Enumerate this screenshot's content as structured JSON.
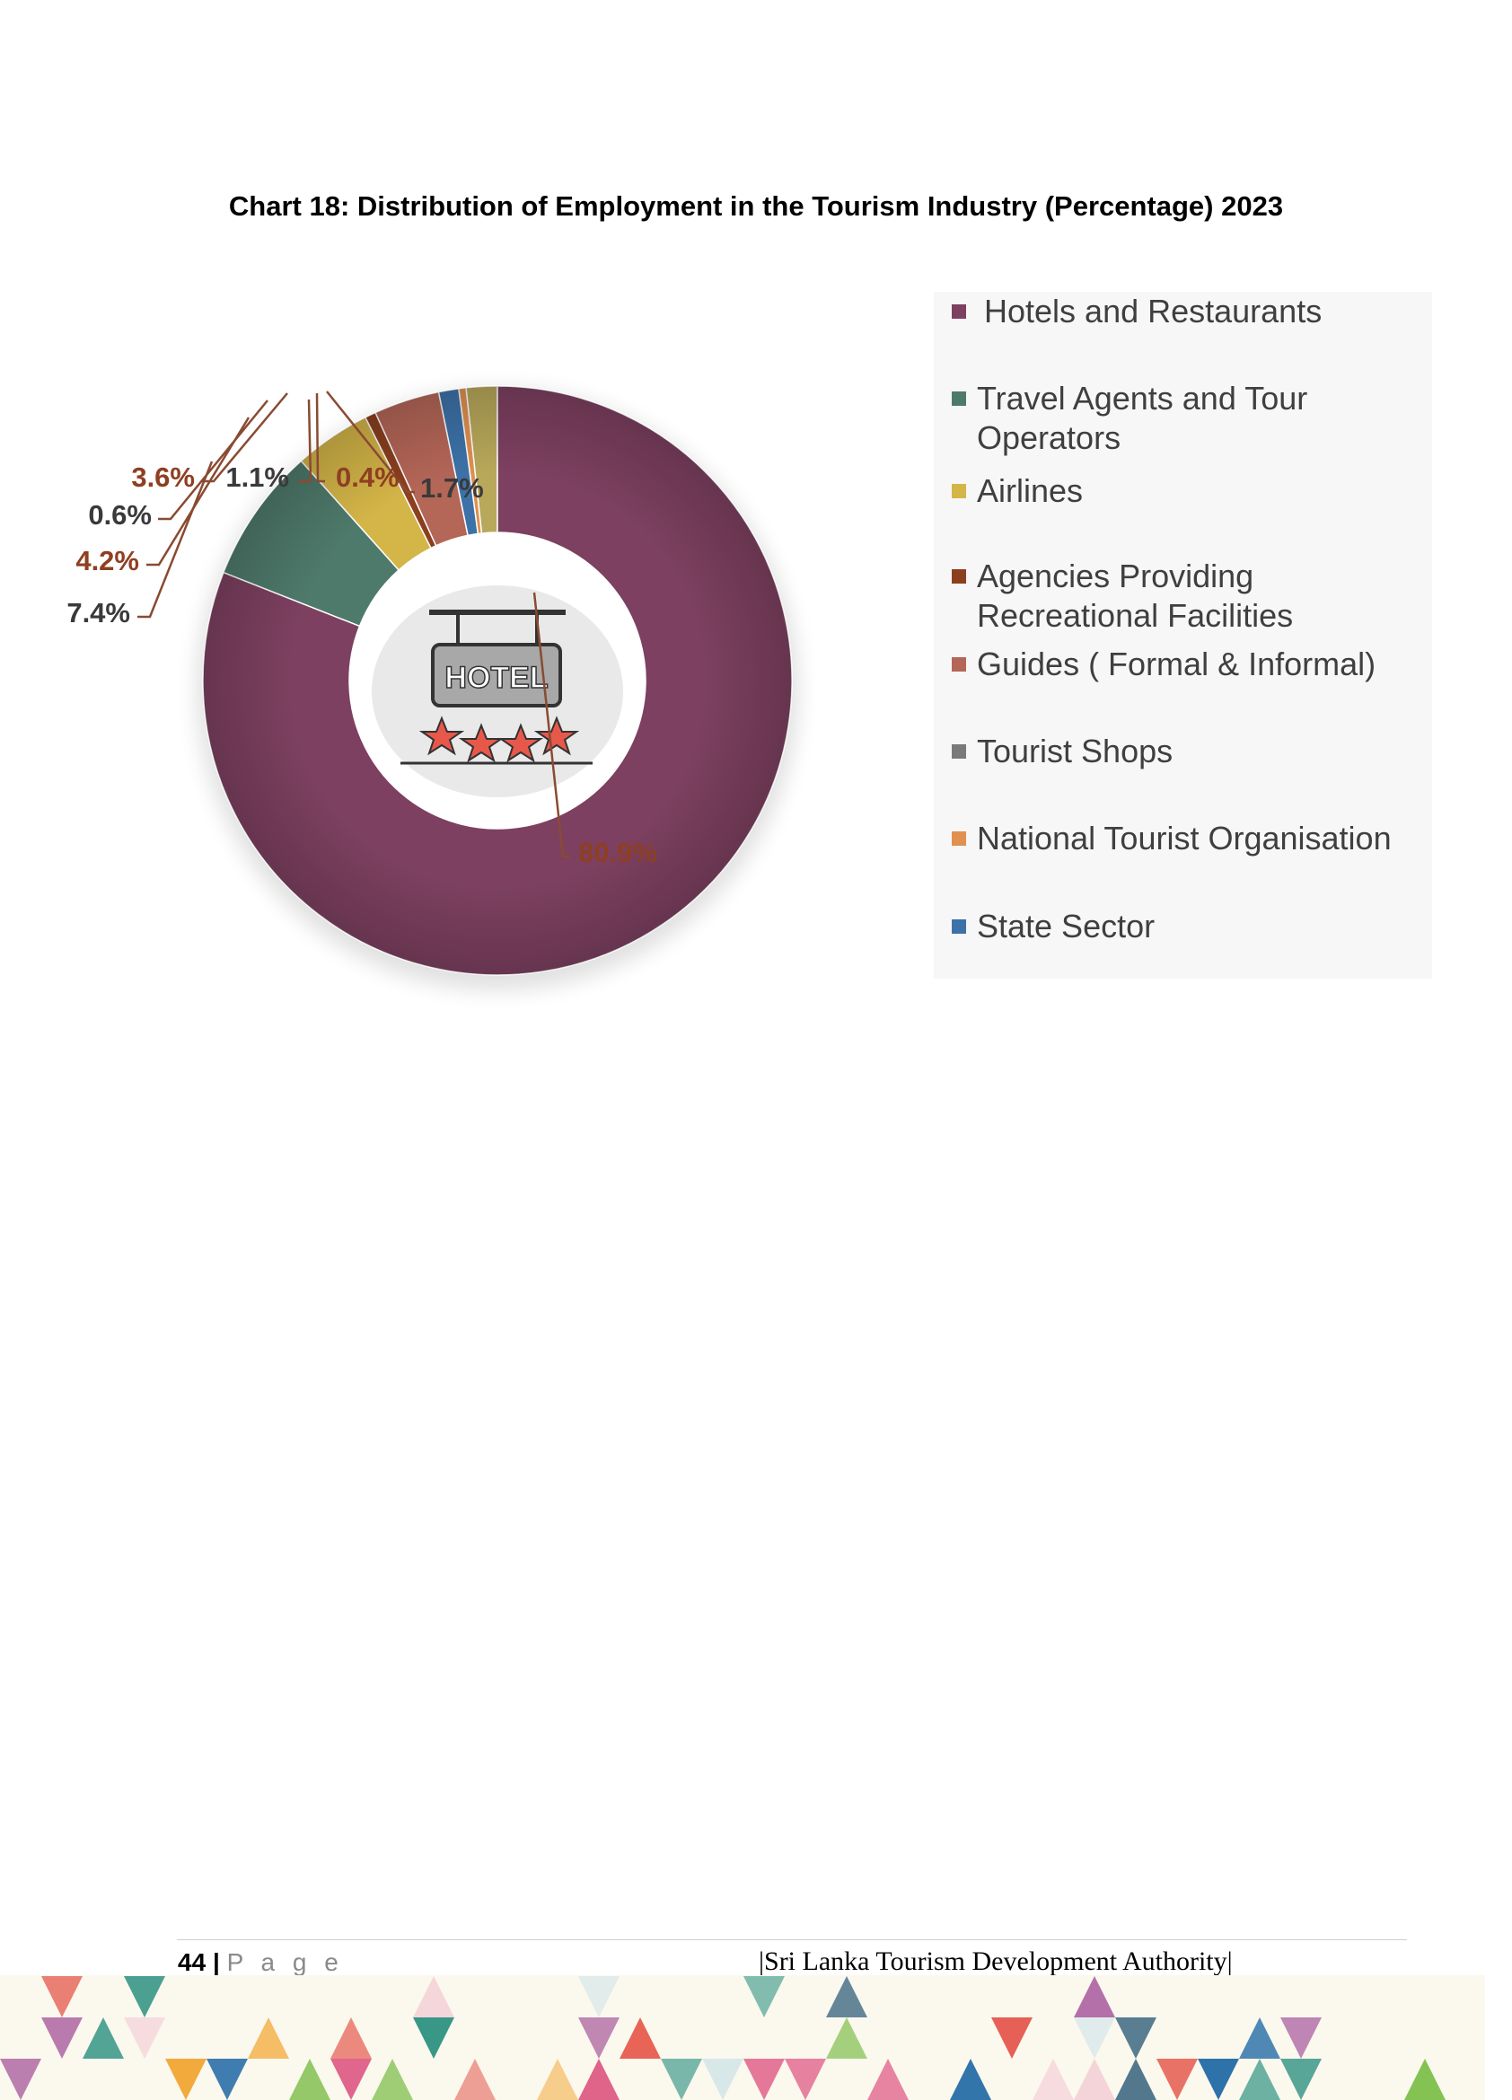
{
  "chart_data": {
    "type": "pie",
    "title": "Chart 18: Distribution of Employment in the Tourism Industry (Percentage) 2023",
    "categories": [
      "Hotels and Restaurants",
      "Travel Agents and Tour Operators",
      "Airlines",
      "Agencies Providing Recreational Facilities",
      "Guides  ( Formal & Informal)",
      "Tourist Shops",
      "National Tourist Organisation",
      "State Sector"
    ],
    "values": [
      80.9,
      7.4,
      4.2,
      0.6,
      3.6,
      1.7,
      0.4,
      1.1
    ],
    "data_labels": [
      "80.9%",
      "7.4%",
      "4.2%",
      "0.6%",
      "3.6%",
      "1.7%",
      "0.4%",
      "1.1%"
    ],
    "colors": [
      "#7d4060",
      "#4e7a6b",
      "#d4b548",
      "#8c3f1e",
      "#b46657",
      "#b8a85a",
      "#e0904f",
      "#3d72a8"
    ],
    "legend_position": "right",
    "legend_order": [
      0,
      1,
      2,
      3,
      4,
      7,
      6,
      8
    ],
    "style": "donut"
  },
  "center_badge": {
    "icon": "hotel-sign-icon",
    "text": "HOTEL"
  },
  "footer": {
    "page_number": "44",
    "separator": "|",
    "page_word": "P a g e",
    "organization": "|Sri Lanka Tourism Development Authority|"
  }
}
